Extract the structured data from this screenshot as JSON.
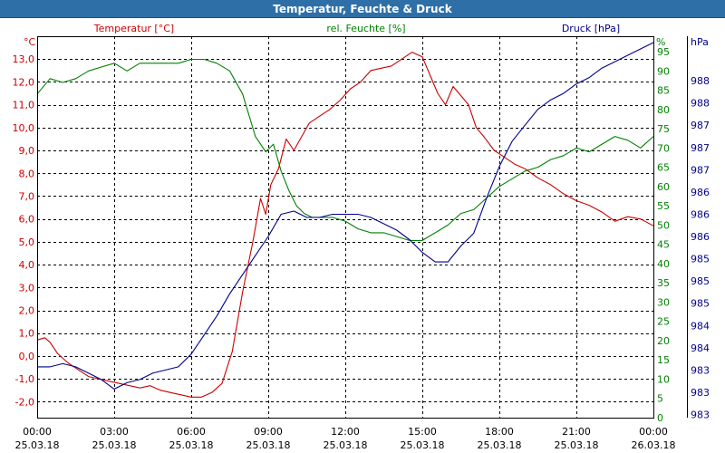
{
  "window": {
    "title": "Temperatur, Feuchte & Druck"
  },
  "chart_data": {
    "type": "line",
    "title": "Temperatur, Feuchte & Druck",
    "grid": true,
    "x_ticks": [
      {
        "time": "00:00",
        "date": "25.03.18"
      },
      {
        "time": "03:00",
        "date": "25.03.18"
      },
      {
        "time": "06:00",
        "date": "25.03.18"
      },
      {
        "time": "09:00",
        "date": "25.03.18"
      },
      {
        "time": "12:00",
        "date": "25.03.18"
      },
      {
        "time": "15:00",
        "date": "25.03.18"
      },
      {
        "time": "18:00",
        "date": "25.03.18"
      },
      {
        "time": "21:00",
        "date": "25.03.18"
      },
      {
        "time": "00:00",
        "date": "26.03.18"
      }
    ],
    "x_range_hours": [
      0,
      24
    ],
    "axes": {
      "temperature": {
        "label": "Temperatur [°C]",
        "unit": "°C",
        "color": "#cc0000",
        "range": [
          -2.7,
          14.0
        ],
        "ticks": [
          "-2,0",
          "-1,0",
          "0,0",
          "1,0",
          "2,0",
          "3,0",
          "4,0",
          "5,0",
          "6,0",
          "7,0",
          "8,0",
          "9,0",
          "10,0",
          "11,0",
          "12,0",
          "13,0"
        ],
        "tick_values": [
          -2,
          -1,
          0,
          1,
          2,
          3,
          4,
          5,
          6,
          7,
          8,
          9,
          10,
          11,
          12,
          13
        ]
      },
      "humidity": {
        "label": "rel. Feuchte [%]",
        "unit": "%",
        "color": "#008000",
        "range": [
          0,
          99
        ],
        "ticks": [
          "0",
          "5",
          "10",
          "15",
          "20",
          "25",
          "30",
          "35",
          "40",
          "45",
          "50",
          "55",
          "60",
          "65",
          "70",
          "75",
          "80",
          "85",
          "90",
          "95"
        ],
        "tick_values": [
          0,
          5,
          10,
          15,
          20,
          25,
          30,
          35,
          40,
          45,
          50,
          55,
          60,
          65,
          70,
          75,
          80,
          85,
          90,
          95
        ]
      },
      "pressure": {
        "label": "Druck [hPa]",
        "unit": "hPa",
        "color": "#00008b",
        "range": [
          982.5,
          988.5
        ],
        "ticks": [
          "983",
          "983",
          "983",
          "984",
          "984",
          "985",
          "985",
          "985",
          "986",
          "986",
          "986",
          "987",
          "987",
          "987",
          "988",
          "988"
        ],
        "tick_values": [
          982.55,
          982.9,
          983.25,
          983.6,
          983.95,
          984.3,
          984.65,
          985.0,
          985.35,
          985.7,
          986.05,
          986.4,
          986.75,
          987.1,
          987.45,
          987.8
        ]
      }
    },
    "series": [
      {
        "name": "Temperatur [°C]",
        "axis": "temperature",
        "x": [
          0,
          0.3,
          0.5,
          0.8,
          1.2,
          1.6,
          2.0,
          2.4,
          2.8,
          3.2,
          3.6,
          4.0,
          4.4,
          4.8,
          5.2,
          5.6,
          6.0,
          6.4,
          6.8,
          7.2,
          7.6,
          8.0,
          8.4,
          8.7,
          8.9,
          9.1,
          9.4,
          9.7,
          10.0,
          10.3,
          10.6,
          11.0,
          11.4,
          11.8,
          12.2,
          12.6,
          13.0,
          13.4,
          13.8,
          14.2,
          14.6,
          15.0,
          15.3,
          15.6,
          15.9,
          16.2,
          16.5,
          16.8,
          17.1,
          17.4,
          17.8,
          18.2,
          18.6,
          19.0,
          19.5,
          20.0,
          20.5,
          21.0,
          21.5,
          22.0,
          22.5,
          23.0,
          23.5,
          24.0
        ],
        "values": [
          0.7,
          0.8,
          0.6,
          0.1,
          -0.3,
          -0.6,
          -0.9,
          -1.0,
          -1.1,
          -1.2,
          -1.3,
          -1.4,
          -1.3,
          -1.5,
          -1.6,
          -1.7,
          -1.8,
          -1.8,
          -1.6,
          -1.2,
          0.2,
          2.8,
          5.0,
          6.9,
          6.2,
          7.5,
          8.2,
          9.5,
          9.0,
          9.6,
          10.2,
          10.5,
          10.8,
          11.2,
          11.7,
          12.0,
          12.5,
          12.6,
          12.7,
          13.0,
          13.3,
          13.1,
          12.3,
          11.5,
          11.0,
          11.8,
          11.4,
          11.0,
          10.0,
          9.6,
          9.0,
          8.7,
          8.4,
          8.2,
          7.8,
          7.5,
          7.1,
          6.8,
          6.6,
          6.3,
          5.9,
          6.1,
          6.0,
          5.7
        ]
      },
      {
        "name": "rel. Feuchte [%]",
        "axis": "humidity",
        "x": [
          0,
          0.5,
          1.0,
          1.5,
          2.0,
          2.5,
          3.0,
          3.5,
          4.0,
          4.5,
          5.0,
          5.5,
          6.0,
          6.5,
          7.0,
          7.5,
          8.0,
          8.5,
          8.9,
          9.2,
          9.5,
          9.8,
          10.1,
          10.4,
          10.7,
          11.0,
          11.5,
          12.0,
          12.5,
          13.0,
          13.5,
          14.0,
          14.5,
          15.0,
          15.5,
          16.0,
          16.5,
          17.0,
          17.5,
          18.0,
          18.5,
          19.0,
          19.5,
          20.0,
          20.5,
          21.0,
          21.5,
          22.0,
          22.5,
          23.0,
          23.5,
          24.0
        ],
        "values": [
          84,
          88,
          87,
          88,
          90,
          91,
          92,
          90,
          92,
          92,
          92,
          92,
          93,
          93,
          92,
          90,
          84,
          73,
          69,
          71,
          64,
          59,
          55,
          53,
          52,
          52,
          52,
          51,
          49,
          48,
          48,
          47,
          46,
          46,
          48,
          50,
          53,
          54,
          57,
          60,
          62,
          64,
          65,
          67,
          68,
          70,
          69,
          71,
          73,
          72,
          70,
          73
        ]
      },
      {
        "name": "Druck [hPa]",
        "axis": "pressure",
        "x": [
          0,
          0.5,
          1.0,
          1.5,
          2.0,
          2.5,
          3.0,
          3.5,
          4.0,
          4.5,
          5.0,
          5.5,
          6.0,
          6.5,
          7.0,
          7.5,
          8.0,
          8.5,
          9.0,
          9.5,
          10.0,
          10.5,
          11.0,
          11.5,
          12.0,
          12.5,
          13.0,
          13.5,
          14.0,
          14.5,
          15.0,
          15.5,
          16.0,
          16.5,
          17.0,
          17.5,
          18.0,
          18.5,
          19.0,
          19.5,
          20.0,
          20.5,
          21.0,
          21.5,
          22.0,
          22.5,
          23.0,
          23.5,
          24.0
        ],
        "values": [
          983.3,
          983.3,
          983.35,
          983.3,
          983.2,
          983.1,
          982.95,
          983.05,
          983.1,
          983.2,
          983.25,
          983.3,
          983.5,
          983.8,
          984.1,
          984.45,
          984.75,
          985.05,
          985.35,
          985.7,
          985.75,
          985.65,
          985.65,
          985.7,
          985.7,
          985.7,
          985.65,
          985.55,
          985.45,
          985.3,
          985.1,
          984.95,
          984.95,
          985.2,
          985.4,
          985.95,
          986.45,
          986.85,
          987.1,
          987.35,
          987.5,
          987.6,
          987.75,
          987.85,
          988.0,
          988.1,
          988.2,
          988.3,
          988.4
        ]
      }
    ]
  }
}
